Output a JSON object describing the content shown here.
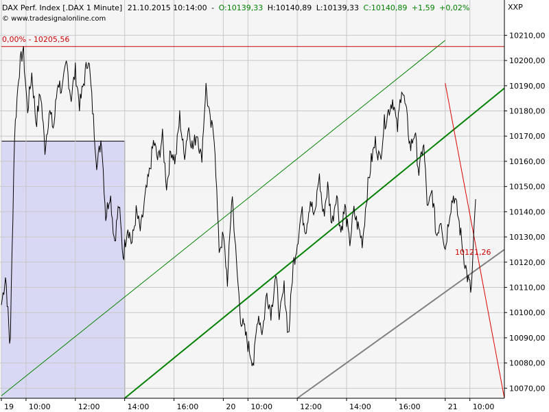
{
  "header": {
    "instrument": "DAX Perf. Index [.DAX  1 Minute]",
    "datetime": "21.10.2015 10:14:00",
    "open": "O:10139,33",
    "high": "H:10140,89",
    "low": "L:10139,33",
    "close": "C:10140,89",
    "change": "+1,59",
    "change_pct": "+0,02%"
  },
  "source": "© www.tradesignalonline.com",
  "axis_label": "XXP",
  "annotations": {
    "top_level_label": "0,00% - 10205,56",
    "last_label": "10121,26"
  },
  "colors": {
    "background": "#f5f5f5",
    "grid": "#c8c8c8",
    "price": "#000000",
    "upper_channel": "#008000",
    "support_line": "#808080",
    "down_line": "#dd0000",
    "level_line": "#cc0000",
    "box_fill": "#d8d8f4",
    "up_text": "#008000",
    "neutral_text": "#000000"
  },
  "chart_data": {
    "type": "line",
    "ylim": [
      10066,
      10224
    ],
    "y_ticks": [
      10070,
      10080,
      10090,
      10100,
      10110,
      10120,
      10130,
      10140,
      10150,
      10160,
      10170,
      10180,
      10190,
      10200,
      10210
    ],
    "y_tick_labels": [
      "10070,00",
      "10080,00",
      "10090,00",
      "10100,00",
      "10110,00",
      "10120,00",
      "10130,00",
      "10140,00",
      "10150,00",
      "10160,00",
      "10170,00",
      "10180,00",
      "10190,00",
      "10200,00",
      "10210,00"
    ],
    "x_ticks": [
      "19",
      "10:00",
      "12:00",
      "14:00",
      "16:00",
      "20",
      "10:00",
      "12:00",
      "14:00",
      "16:00",
      "21",
      "10:00"
    ],
    "x_tick_index": [
      0,
      30,
      90,
      150,
      210,
      270,
      300,
      360,
      420,
      480,
      540,
      570
    ],
    "n_bars": 612,
    "series": [
      {
        "values": [
          10103,
          10115,
          10085,
          10170,
          10195,
          10205,
          10180,
          10195,
          10175,
          10188,
          10165,
          10180,
          10173,
          10192,
          10188,
          10199,
          10185,
          10196,
          10182,
          10192,
          10202,
          10180,
          10158,
          10170,
          10138,
          10148,
          10128,
          10143,
          10122,
          10135,
          10127,
          10140,
          10132,
          10145,
          10155,
          10168,
          10160,
          10170,
          10150,
          10165,
          10160,
          10178,
          10162,
          10174,
          10165,
          10172,
          10160,
          10190,
          10175,
          10170,
          10125,
          10130,
          10112,
          10148,
          10120,
          10098,
          10092,
          10085,
          10080,
          10100,
          10092,
          10108,
          10100,
          10115,
          10098,
          10110,
          10090,
          10118,
          10128,
          10140,
          10133,
          10145,
          10137,
          10155,
          10138,
          10150,
          10135,
          10148,
          10132,
          10142,
          10127,
          10140,
          10134,
          10128,
          10147,
          10160,
          10168,
          10160,
          10175,
          10180,
          10185,
          10172,
          10190,
          10180,
          10165,
          10172,
          10155,
          10168,
          10140,
          10148,
          10130,
          10138,
          10125,
          10140,
          10147,
          10138,
          10126,
          10115,
          10108,
          10145
        ]
      }
    ],
    "lines": [
      {
        "name": "upper_channel",
        "from": [
          0,
          10067
        ],
        "to": [
          540,
          10208
        ]
      },
      {
        "name": "lower_channel",
        "from": [
          150,
          10066
        ],
        "to": [
          612,
          10189
        ]
      },
      {
        "name": "support",
        "from": [
          360,
          10066
        ],
        "to": [
          612,
          10125
        ]
      },
      {
        "name": "down_line",
        "from": [
          540,
          10191
        ],
        "to": [
          612,
          10066
        ]
      },
      {
        "name": "level",
        "from": [
          0,
          10205.56
        ],
        "to": [
          612,
          10205.56
        ]
      },
      {
        "name": "box_top",
        "from": [
          0,
          10168
        ],
        "to": [
          150,
          10168
        ]
      }
    ],
    "box": {
      "from_bar": 0,
      "to_bar": 150,
      "top": 10168,
      "bottom": 10066
    }
  }
}
